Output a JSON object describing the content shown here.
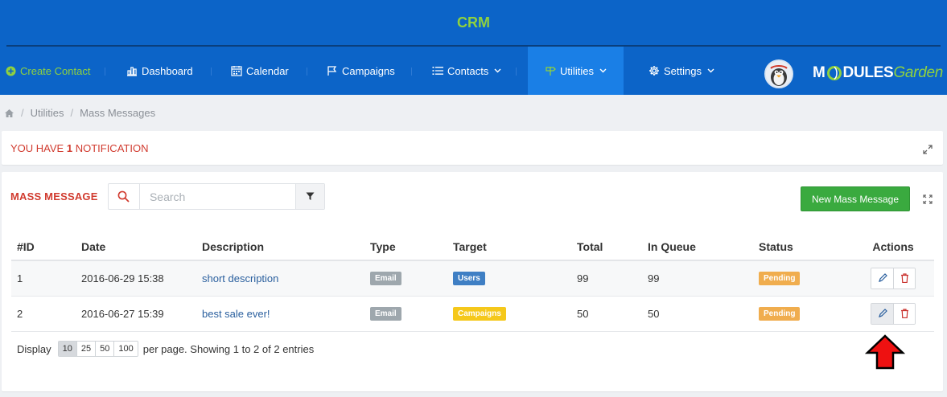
{
  "header": {
    "title": "CRM"
  },
  "nav": {
    "create_contact": "Create Contact",
    "dashboard": "Dashboard",
    "calendar": "Calendar",
    "campaigns": "Campaigns",
    "contacts": "Contacts",
    "utilities": "Utilities",
    "settings": "Settings"
  },
  "brand": {
    "part1": "M",
    "part2": "DULES",
    "part3": "Garden"
  },
  "breadcrumb": {
    "item1": "Utilities",
    "item2": "Mass Messages"
  },
  "notification": {
    "prefix": "YOU HAVE",
    "count": "1",
    "suffix": "NOTIFICATION"
  },
  "mass_message": {
    "title": "MASS MESSAGE",
    "search_placeholder": "Search",
    "new_button": "New Mass Message"
  },
  "table": {
    "headers": [
      "#ID",
      "Date",
      "Description",
      "Type",
      "Target",
      "Total",
      "In Queue",
      "Status",
      "Actions"
    ],
    "rows": [
      {
        "id": "1",
        "date": "2016-06-29 15:38",
        "description": "short description",
        "type": "Email",
        "target": "Users",
        "total": "99",
        "in_queue": "99",
        "status": "Pending"
      },
      {
        "id": "2",
        "date": "2016-06-27 15:39",
        "description": "best sale ever!",
        "type": "Email",
        "target": "Campaigns",
        "total": "50",
        "in_queue": "50",
        "status": "Pending"
      }
    ]
  },
  "pager": {
    "display": "Display",
    "sizes": [
      "10",
      "25",
      "50",
      "100"
    ],
    "summary": "per page. Showing 1 to 2 of 2 entries"
  },
  "colors": {
    "nav_bg": "#0c64c8",
    "accent_green": "#8fd13f",
    "alert_red": "#d13b2f",
    "primary_button": "#3aaa3f"
  }
}
